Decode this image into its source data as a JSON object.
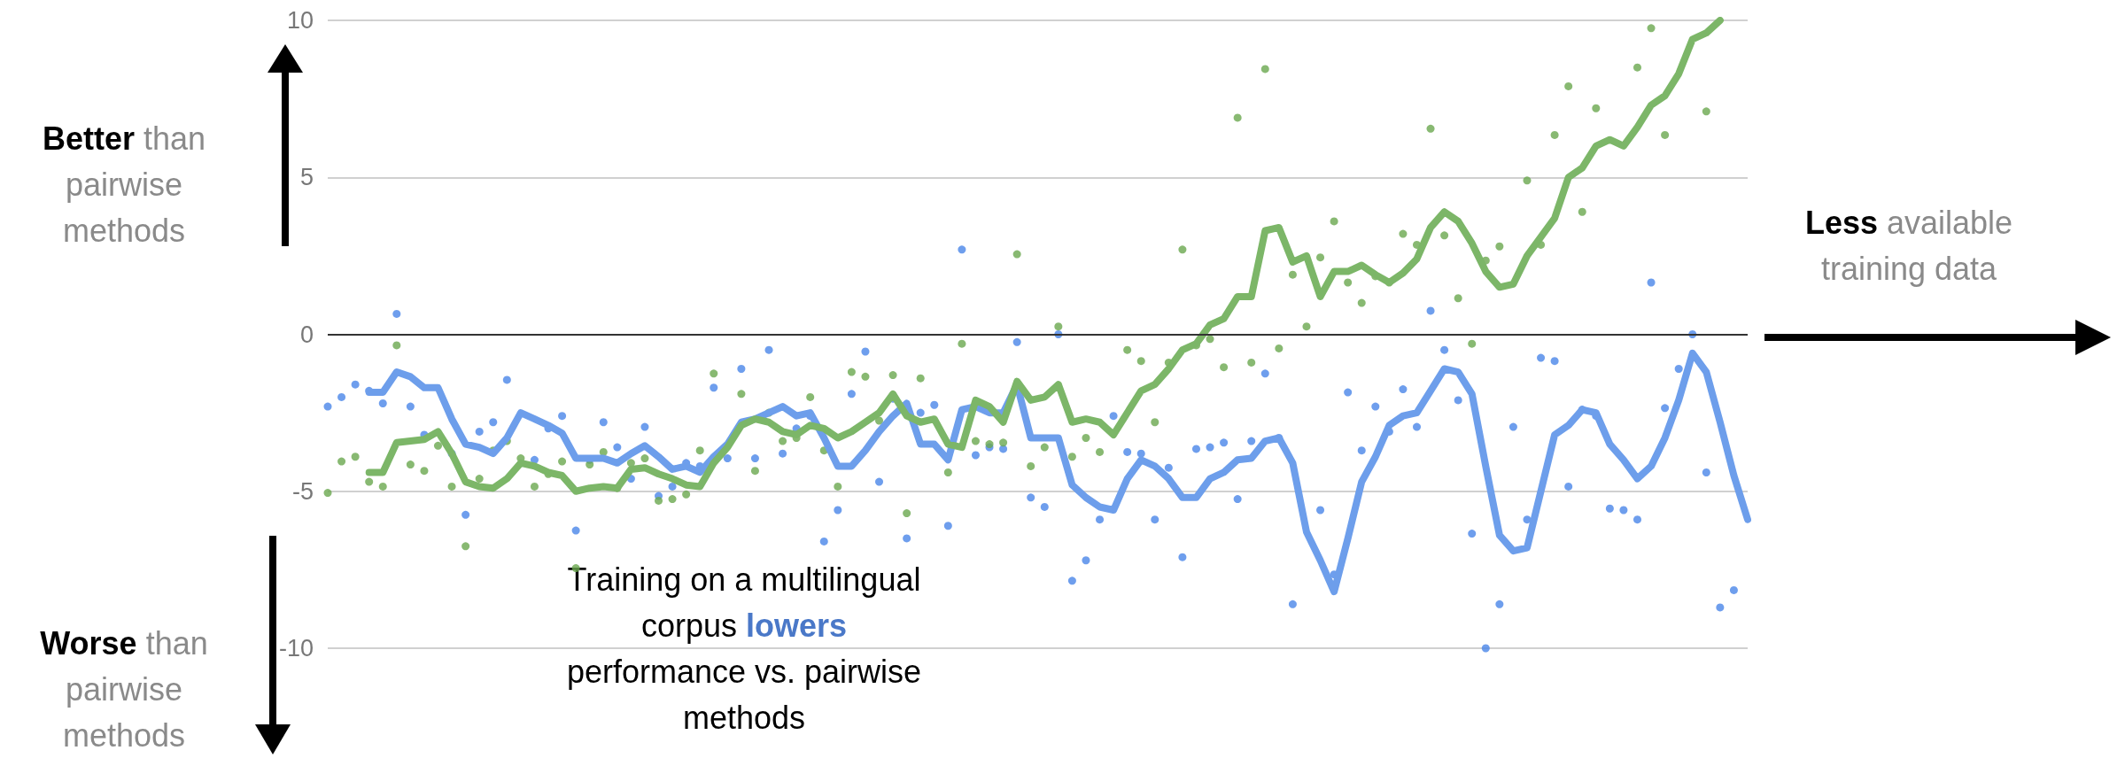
{
  "chart_data": {
    "type": "line",
    "categories": [
      null,
      null,
      null,
      null,
      null,
      null,
      null,
      null,
      null,
      null,
      null,
      null,
      null,
      null,
      null,
      null,
      null,
      null,
      null,
      null,
      null,
      null,
      null,
      null,
      null,
      null,
      null,
      null,
      null,
      null,
      null,
      null,
      null,
      null,
      null,
      null,
      null,
      null,
      null,
      null,
      null,
      null,
      null,
      null,
      null,
      null,
      null,
      null,
      null,
      null,
      null,
      null,
      null,
      null,
      null,
      null,
      null,
      null,
      null,
      null,
      null,
      null,
      null,
      null,
      null,
      null,
      null,
      null,
      null,
      null,
      null,
      null,
      null,
      null,
      null,
      null,
      null,
      null,
      null,
      null,
      null,
      null,
      null,
      null,
      null,
      null,
      null,
      null,
      null,
      null,
      null,
      null,
      null,
      null,
      null,
      null,
      null,
      null,
      null,
      null,
      null,
      null,
      null,
      null
    ],
    "series": [
      {
        "type": "scatter",
        "marker": "circle",
        "color": "#4a86e8",
        "values": [
          -2.3,
          -2.0,
          -1.6,
          -1.8,
          -2.2,
          0.65,
          -2.3,
          -3.2,
          null,
          -3.8,
          -5.75,
          -3.1,
          -2.8,
          -1.45,
          null,
          -4.0,
          -3.0,
          -2.6,
          -6.25,
          -4.0,
          -2.8,
          -3.6,
          -4.6,
          -2.95,
          -5.15,
          -4.85,
          -4.1,
          -4.2,
          -1.7,
          -3.95,
          -1.1,
          -3.95,
          -0.5,
          -3.8,
          -3.0,
          -2.6,
          -6.6,
          -5.6,
          -1.9,
          -0.55,
          -4.7,
          -2.05,
          -6.5,
          -2.5,
          -2.25,
          -6.1,
          2.7,
          -3.85,
          -3.6,
          -3.65,
          -0.25,
          -5.2,
          -5.5,
          0.0,
          -7.85,
          -7.2,
          -5.9,
          -2.6,
          -3.75,
          -3.8,
          -5.9,
          -4.25,
          -7.1,
          -3.65,
          -3.6,
          -3.45,
          -5.25,
          -3.4,
          -1.25,
          -3.3,
          -8.6,
          null,
          -5.6,
          -7.65,
          -1.85,
          -3.7,
          -2.3,
          -3.1,
          -1.75,
          -2.95,
          0.75,
          -0.5,
          -2.1,
          -6.35,
          -10.0,
          -8.6,
          -2.95,
          -5.9,
          -0.75,
          -0.85,
          -4.85,
          -2.4,
          -2.6,
          -5.55,
          -5.6,
          -5.9,
          1.65,
          -2.35,
          -1.1,
          0.0,
          -4.4,
          -8.7,
          -8.15,
          null
        ]
      },
      {
        "type": "scatter",
        "marker": "circle",
        "color": "#6aa84f",
        "values": [
          -5.05,
          -4.05,
          -3.9,
          -4.7,
          -4.85,
          -0.35,
          -4.15,
          -4.35,
          -3.55,
          -4.85,
          -6.75,
          -4.6,
          -3.7,
          -3.4,
          -3.95,
          -4.85,
          -4.45,
          -4.05,
          -7.45,
          -4.15,
          -3.75,
          -4.9,
          -4.1,
          -3.95,
          -5.3,
          -5.25,
          -5.1,
          -3.7,
          -1.25,
          null,
          -1.9,
          -4.35,
          -2.5,
          -3.4,
          -3.3,
          -2.0,
          -3.7,
          -4.85,
          -1.2,
          -1.35,
          -2.75,
          -1.3,
          -5.7,
          -1.4,
          null,
          -4.4,
          -0.3,
          -3.4,
          -3.5,
          -3.45,
          2.55,
          -4.2,
          -3.6,
          0.25,
          -3.9,
          -3.3,
          -3.75,
          null,
          -0.5,
          -0.85,
          -2.8,
          -0.9,
          2.7,
          -0.35,
          -0.15,
          -1.05,
          6.9,
          -0.9,
          8.45,
          -0.45,
          1.9,
          0.25,
          2.45,
          3.6,
          1.65,
          1.0,
          1.85,
          1.65,
          3.2,
          2.85,
          6.55,
          3.15,
          1.15,
          -0.3,
          2.35,
          2.8,
          null,
          4.9,
          2.85,
          6.35,
          7.9,
          3.9,
          7.2,
          null,
          null,
          8.5,
          9.75,
          6.35,
          null,
          null,
          7.1,
          null,
          null,
          null
        ]
      },
      {
        "marker": "none",
        "color": "#6d9eeb",
        "values": [
          null,
          null,
          null,
          -1.85,
          -1.85,
          -1.2,
          -1.35,
          -1.7,
          -1.7,
          -2.7,
          -3.5,
          -3.6,
          -3.8,
          -3.3,
          -2.5,
          -2.7,
          -2.9,
          -3.15,
          -3.95,
          -3.95,
          -3.95,
          -4.1,
          -3.8,
          -3.55,
          -3.9,
          -4.3,
          -4.2,
          -4.4,
          -3.9,
          -3.5,
          -2.8,
          -2.7,
          -2.5,
          -2.3,
          -2.6,
          -2.5,
          -3.3,
          -4.2,
          -4.2,
          -3.7,
          -3.1,
          -2.6,
          -2.2,
          -3.5,
          -3.5,
          -4.0,
          -2.4,
          -2.3,
          -2.5,
          -2.5,
          -1.6,
          -3.3,
          -3.3,
          -3.3,
          -4.8,
          -5.2,
          -5.5,
          -5.6,
          -4.6,
          -4.0,
          -4.2,
          -4.6,
          -5.2,
          -5.2,
          -4.6,
          -4.4,
          -4.0,
          -3.95,
          -3.4,
          -3.3,
          -4.1,
          -6.3,
          -7.2,
          -8.2,
          -6.5,
          -4.7,
          -3.9,
          -2.9,
          -2.6,
          -2.5,
          -1.8,
          -1.1,
          -1.2,
          -1.9,
          -4.2,
          -6.4,
          -6.9,
          -6.8,
          -5.0,
          -3.2,
          -2.9,
          -2.4,
          -2.5,
          -3.5,
          -4.0,
          -4.6,
          -4.2,
          -3.3,
          -2.1,
          -0.6,
          -1.2,
          -2.8,
          -4.5,
          -5.9
        ]
      },
      {
        "marker": "none",
        "color": "#7cb668",
        "values": [
          null,
          null,
          null,
          -4.4,
          -4.4,
          -3.45,
          -3.4,
          -3.35,
          -3.1,
          -3.8,
          -4.7,
          -4.85,
          -4.9,
          -4.6,
          -4.1,
          -4.2,
          -4.4,
          -4.5,
          -5.0,
          -4.9,
          -4.85,
          -4.9,
          -4.3,
          -4.25,
          -4.45,
          -4.6,
          -4.8,
          -4.85,
          -4.1,
          -3.6,
          -2.9,
          -2.7,
          -2.8,
          -3.1,
          -3.2,
          -2.9,
          -3.0,
          -3.3,
          -3.1,
          -2.8,
          -2.5,
          -1.9,
          -2.6,
          -2.8,
          -2.7,
          -3.5,
          -3.6,
          -2.1,
          -2.3,
          -2.8,
          -1.5,
          -2.1,
          -2.0,
          -1.6,
          -2.8,
          -2.7,
          -2.8,
          -3.2,
          -2.5,
          -1.8,
          -1.6,
          -1.1,
          -0.5,
          -0.3,
          0.3,
          0.5,
          1.2,
          1.2,
          3.3,
          3.4,
          2.3,
          2.5,
          1.2,
          2.0,
          2.0,
          2.2,
          1.9,
          1.65,
          1.95,
          2.4,
          3.4,
          3.9,
          3.6,
          2.9,
          2.0,
          1.5,
          1.6,
          2.5,
          3.1,
          3.7,
          5.0,
          5.3,
          6.0,
          6.2,
          6.0,
          6.6,
          7.3,
          7.6,
          8.3,
          9.4,
          9.6,
          10,
          null,
          null
        ]
      }
    ],
    "ylim": [
      -10,
      10
    ],
    "yticks": [
      -10,
      -5,
      0,
      5,
      10
    ],
    "grid": "y",
    "tick_labels": "y",
    "ref_lines": [
      {
        "axis": "y",
        "value": 0,
        "color": "#333333"
      }
    ],
    "annotations": [
      "Better than pairwise methods",
      "Worse than pairwise methods",
      "Less available training data",
      "Training on a multilingual corpus lowers performance vs. pairwise methods"
    ]
  }
}
